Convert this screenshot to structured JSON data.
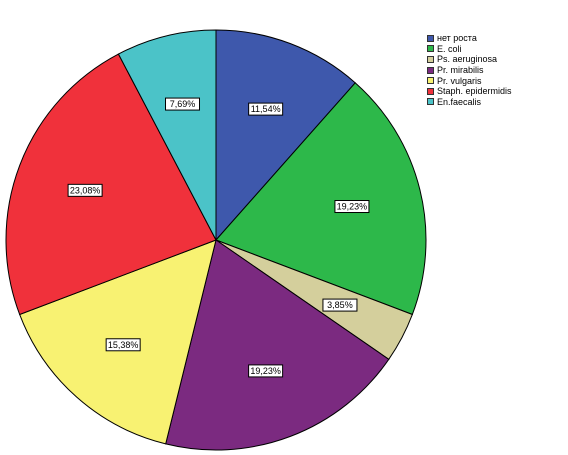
{
  "chart_data": {
    "type": "pie",
    "title": "",
    "start_angle_deg": 0,
    "direction": "clockwise",
    "legend_position": "top-right",
    "slices": [
      {
        "name": "нет роста",
        "value": 11.54,
        "label": "11,54%",
        "color": "#3e58ac"
      },
      {
        "name": "E. coli",
        "value": 19.23,
        "label": "19,23%",
        "color": "#2db84a"
      },
      {
        "name": "Ps. aeruginosa",
        "value": 3.85,
        "label": "3,85%",
        "color": "#d4cf9c"
      },
      {
        "name": "Pr. mirabilis",
        "value": 19.23,
        "label": "19,23%",
        "color": "#7b2a80"
      },
      {
        "name": "Pr. vulgaris",
        "value": 15.38,
        "label": "15,38%",
        "color": "#f8f272"
      },
      {
        "name": "Staph. epidermidis",
        "value": 23.08,
        "label": "23,08%",
        "color": "#f0313b"
      },
      {
        "name": "En.faecalis",
        "value": 7.69,
        "label": "7,69%",
        "color": "#4bc3c8"
      }
    ]
  }
}
